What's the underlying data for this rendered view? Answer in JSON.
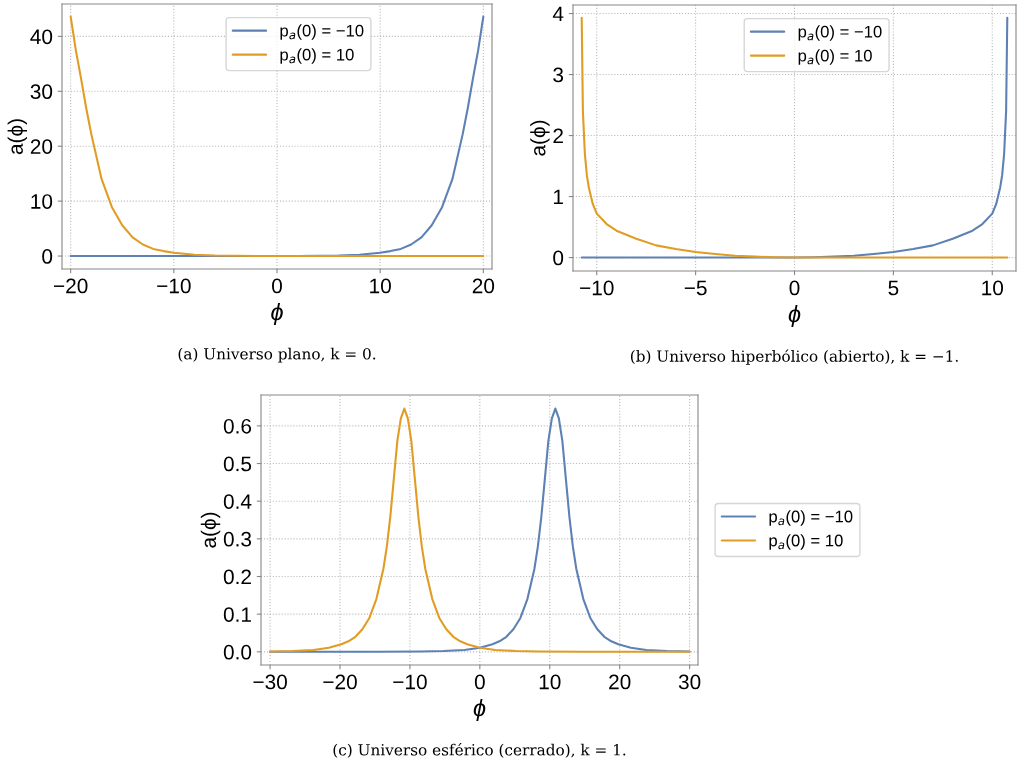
{
  "chart_data": [
    {
      "type": "line",
      "xlabel": "ϕ",
      "ylabel": "a(ϕ)",
      "xlim": [
        -20.84,
        20.84
      ],
      "ylim": [
        -2.36,
        45.9
      ],
      "xticks": [
        {
          "value": -20,
          "label": "−20"
        },
        {
          "value": -10,
          "label": "−10"
        },
        0,
        10,
        20
      ],
      "yticks": [
        0,
        10,
        20,
        30,
        40
      ],
      "grid": true,
      "legend": "top",
      "annotations": [
        "(a) Universo plano, k = 0."
      ],
      "series": [
        {
          "name": "p$_{a}$(0) = −10",
          "color": "#5e81b5",
          "x": [
            -20,
            -15,
            -10,
            -5,
            0,
            2,
            4,
            6,
            8,
            10,
            11,
            12,
            13,
            14,
            15,
            16,
            17,
            18,
            18.5,
            19,
            19.5,
            20
          ],
          "values": [
            0,
            0,
            0,
            0,
            0,
            0.01,
            0.04,
            0.1,
            0.25,
            0.6,
            0.9,
            1.3,
            2.1,
            3.4,
            5.6,
            8.9,
            14,
            22.2,
            27,
            32.4,
            37.5,
            43.6
          ]
        },
        {
          "name": "p$_{a}$(0) = 10",
          "color": "#e19c24",
          "x": [
            -20,
            -19.5,
            -19,
            -18.5,
            -18,
            -17,
            -16,
            -15,
            -14,
            -13,
            -12,
            -11,
            -10,
            -8,
            -6,
            -4,
            -2,
            0,
            5,
            10,
            15,
            20
          ],
          "values": [
            43.6,
            37.5,
            32.4,
            27,
            22.2,
            14,
            8.9,
            5.6,
            3.4,
            2.1,
            1.3,
            0.9,
            0.6,
            0.25,
            0.1,
            0.04,
            0.01,
            0,
            0,
            0,
            0,
            0
          ]
        }
      ]
    },
    {
      "type": "line",
      "xlabel": "ϕ",
      "ylabel": "a(ϕ)",
      "xlim": [
        -11.2,
        11.2
      ],
      "ylim": [
        -0.22,
        4.14
      ],
      "xticks": [
        {
          "value": -10,
          "label": "−10"
        },
        {
          "value": -5,
          "label": "−5"
        },
        0,
        5,
        10
      ],
      "yticks": [
        0,
        1,
        2,
        3,
        4
      ],
      "grid": true,
      "legend": "top",
      "annotations": [
        "(b) Universo hiperbólico (abierto), k = −1."
      ],
      "series": [
        {
          "name": "p$_{a}$(0) = −10",
          "color": "#5e81b5",
          "x": [
            -10.76,
            -10,
            -8,
            -5,
            -2,
            0,
            1,
            2,
            3,
            4,
            5,
            6,
            7,
            8,
            9,
            9.5,
            10,
            10.2,
            10.4,
            10.5,
            10.6,
            10.7,
            10.76
          ],
          "values": [
            0,
            0,
            0,
            0,
            0,
            0,
            0.005,
            0.015,
            0.03,
            0.06,
            0.09,
            0.14,
            0.2,
            0.31,
            0.44,
            0.55,
            0.72,
            0.88,
            1.15,
            1.35,
            1.7,
            2.4,
            3.93
          ]
        },
        {
          "name": "p$_{a}$(0) = 10",
          "color": "#e19c24",
          "x": [
            -10.76,
            -10.7,
            -10.6,
            -10.5,
            -10.4,
            -10.2,
            -10,
            -9.5,
            -9,
            -8,
            -7,
            -6,
            -5,
            -4,
            -3,
            -2,
            -1,
            0,
            2,
            5,
            8,
            10,
            10.76
          ],
          "values": [
            3.93,
            2.4,
            1.7,
            1.35,
            1.15,
            0.88,
            0.72,
            0.55,
            0.44,
            0.31,
            0.2,
            0.14,
            0.09,
            0.06,
            0.03,
            0.015,
            0.005,
            0,
            0,
            0,
            0,
            0,
            0
          ]
        }
      ]
    },
    {
      "type": "line",
      "xlabel": "ϕ",
      "ylabel": "a(ϕ)",
      "xlim": [
        -31.3,
        31.2
      ],
      "ylim": [
        -0.035,
        0.682
      ],
      "xticks": [
        {
          "value": -30,
          "label": "−30"
        },
        {
          "value": -20,
          "label": "−20"
        },
        {
          "value": -10,
          "label": "−10"
        },
        0,
        10,
        20,
        30
      ],
      "yticks": [
        {
          "value": 0,
          "label": "0.0"
        },
        0.1,
        0.2,
        0.3,
        0.4,
        0.5,
        0.6
      ],
      "grid": true,
      "legend": "right",
      "annotations": [
        "(c) Universo esférico (cerrado), k = 1."
      ],
      "series": [
        {
          "name": "p$_{a}$(0) = −10",
          "color": "#5e81b5",
          "x": [
            -30,
            -15,
            -8.4,
            -5.2,
            -2.2,
            0,
            1.8,
            2.8,
            3.8,
            4.8,
            5.8,
            6.8,
            7.8,
            8.3,
            8.8,
            9.3,
            9.8,
            10.3,
            10.8,
            11.3,
            11.8,
            12.3,
            12.8,
            13.3,
            13.8,
            14.8,
            15.8,
            16.8,
            17.8,
            18.8,
            19.8,
            21.6,
            23.8,
            26.8,
            30
          ],
          "values": [
            0,
            0,
            0.001,
            0.002,
            0.005,
            0.011,
            0.02,
            0.028,
            0.04,
            0.06,
            0.09,
            0.14,
            0.22,
            0.28,
            0.36,
            0.46,
            0.56,
            0.62,
            0.646,
            0.62,
            0.56,
            0.46,
            0.36,
            0.28,
            0.22,
            0.14,
            0.09,
            0.06,
            0.04,
            0.028,
            0.02,
            0.011,
            0.005,
            0.002,
            0.001
          ]
        },
        {
          "name": "p$_{a}$(0) = 10",
          "color": "#e19c24",
          "x": [
            -30,
            -26.8,
            -23.8,
            -21.6,
            -19.8,
            -18.8,
            -17.8,
            -16.8,
            -15.8,
            -14.8,
            -13.8,
            -13.3,
            -12.8,
            -12.3,
            -11.8,
            -11.3,
            -10.8,
            -10.3,
            -9.8,
            -9.3,
            -8.8,
            -8.3,
            -7.8,
            -6.8,
            -5.8,
            -4.8,
            -3.8,
            -2.8,
            -1.8,
            0,
            2.2,
            5.2,
            8.4,
            15,
            30
          ],
          "values": [
            0.001,
            0.002,
            0.005,
            0.011,
            0.02,
            0.028,
            0.04,
            0.06,
            0.09,
            0.14,
            0.22,
            0.28,
            0.36,
            0.46,
            0.56,
            0.62,
            0.646,
            0.62,
            0.56,
            0.46,
            0.36,
            0.28,
            0.22,
            0.14,
            0.09,
            0.06,
            0.04,
            0.028,
            0.02,
            0.011,
            0.005,
            0.002,
            0.001,
            0,
            0
          ]
        }
      ]
    }
  ]
}
